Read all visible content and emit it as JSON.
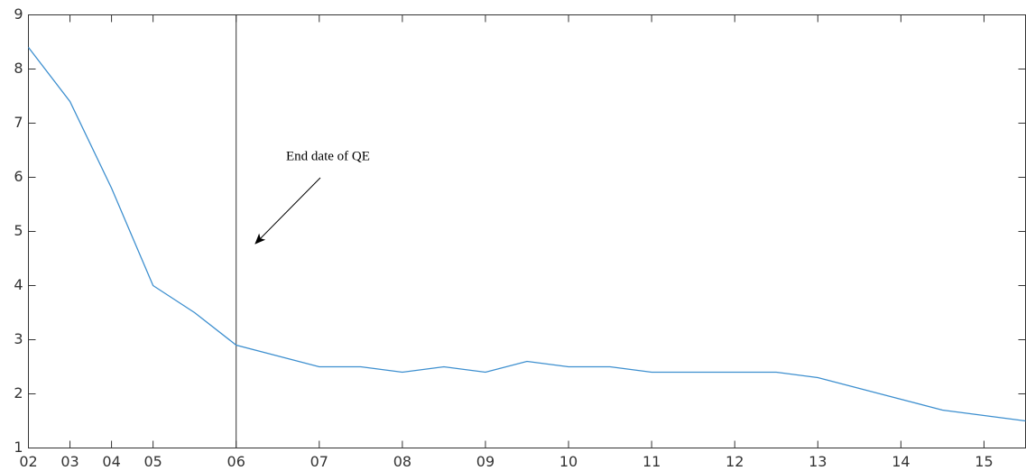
{
  "chart_data": {
    "type": "line",
    "x": [
      0,
      1,
      2,
      3,
      4,
      5,
      6,
      7,
      8,
      9,
      10,
      11,
      12,
      13,
      14,
      15,
      16,
      17,
      18,
      19,
      20,
      21,
      22,
      23,
      24
    ],
    "series": [
      {
        "color": "#3d8fcf",
        "values": [
          8.4,
          7.4,
          5.8,
          4.0,
          3.5,
          2.9,
          2.7,
          2.5,
          2.5,
          2.4,
          2.5,
          2.4,
          2.6,
          2.5,
          2.5,
          2.4,
          2.4,
          2.4,
          2.4,
          2.3,
          2.1,
          1.9,
          1.7,
          1.6,
          1.5
        ]
      }
    ],
    "xlim": [
      0,
      24
    ],
    "xticks": [
      {
        "value": 0,
        "label": "02"
      },
      {
        "value": 1,
        "label": "03"
      },
      {
        "value": 2,
        "label": "04"
      },
      {
        "value": 3,
        "label": "05"
      },
      {
        "value": 5,
        "label": "06"
      },
      {
        "value": 7,
        "label": "07"
      },
      {
        "value": 9,
        "label": "08"
      },
      {
        "value": 11,
        "label": "09"
      },
      {
        "value": 13,
        "label": "10"
      },
      {
        "value": 15,
        "label": "11"
      },
      {
        "value": 17,
        "label": "12"
      },
      {
        "value": 19,
        "label": "13"
      },
      {
        "value": 21,
        "label": "14"
      },
      {
        "value": 23,
        "label": "15"
      }
    ],
    "ylim": [
      1,
      9
    ],
    "yticks": [
      1,
      2,
      3,
      4,
      5,
      6,
      7,
      8,
      9
    ],
    "vline": 5,
    "annotation": "End date of QE",
    "grid": false
  }
}
